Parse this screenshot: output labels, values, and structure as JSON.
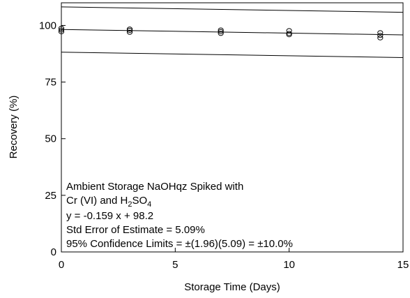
{
  "chart_data": {
    "type": "scatter",
    "title": "",
    "xlabel": "Storage Time (Days)",
    "ylabel": "Recovery (%)",
    "xlim": [
      0,
      15
    ],
    "ylim": [
      0,
      110
    ],
    "x_ticks": [
      0,
      5,
      10,
      15
    ],
    "y_ticks": [
      0,
      25,
      50,
      75,
      100
    ],
    "x_tick_labels": [
      "0",
      "5",
      "10",
      "15"
    ],
    "y_tick_labels": [
      "0",
      "25",
      "50",
      "75",
      "100"
    ],
    "grid": false,
    "legend": "none",
    "points": [
      {
        "x": 0,
        "y": 97.2
      },
      {
        "x": 0,
        "y": 98.0
      },
      {
        "x": 0,
        "y": 98.8
      },
      {
        "x": 3,
        "y": 97.0
      },
      {
        "x": 3,
        "y": 97.8
      },
      {
        "x": 3,
        "y": 98.4
      },
      {
        "x": 7,
        "y": 96.5
      },
      {
        "x": 7,
        "y": 97.3
      },
      {
        "x": 7,
        "y": 98.0
      },
      {
        "x": 10,
        "y": 95.9
      },
      {
        "x": 10,
        "y": 96.5
      },
      {
        "x": 10,
        "y": 97.7
      },
      {
        "x": 14,
        "y": 94.5
      },
      {
        "x": 14,
        "y": 95.6
      },
      {
        "x": 14,
        "y": 96.8
      }
    ],
    "lines": [
      {
        "slope": -0.159,
        "intercept": 98.2
      },
      {
        "slope": -0.159,
        "intercept": 108.2
      },
      {
        "slope": -0.159,
        "intercept": 88.2
      }
    ],
    "annotation": {
      "line1": "Ambient Storage NaOHqz Spiked with",
      "line2_prefix": "Cr (VI) and H",
      "line2_sub1": "2",
      "line2_mid": "SO",
      "line2_sub2": "4",
      "equation": "y = -0.159 x + 98.2",
      "std_error": "Std Error of Estimate = 5.09%",
      "confidence": "95% Confidence Limits = ±(1.96)(5.09) = ±10.0%"
    },
    "colors": {
      "line": "#000000",
      "marker": "#000000"
    }
  }
}
